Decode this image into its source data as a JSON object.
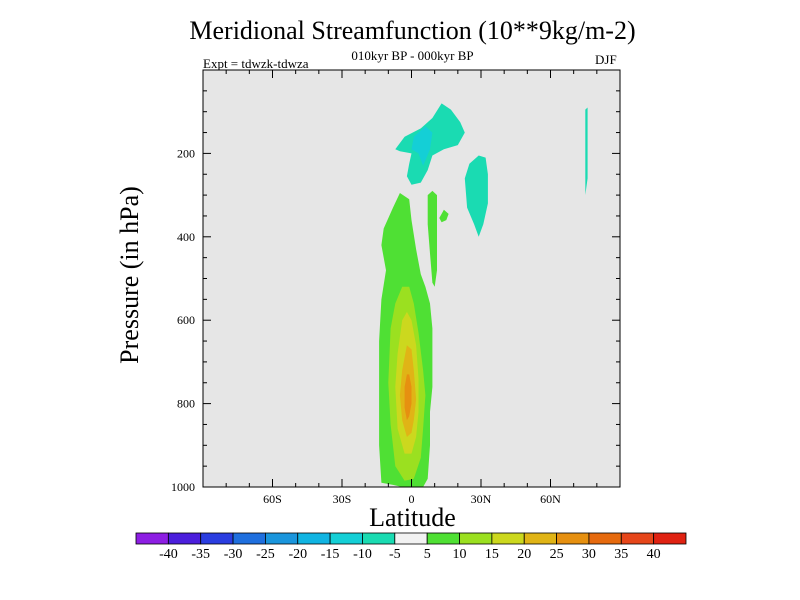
{
  "chart_data": {
    "type": "contour",
    "title": "Meridional Streamfunction (10**9kg/m-2)",
    "subtitle": "010kyr BP - 000kyr BP",
    "left_annotation": "Expt = tdwzk-tdwza",
    "right_annotation": "DJF",
    "xlabel": "Latitude",
    "ylabel": "Pressure (in hPa)",
    "xlim": [
      -90,
      90
    ],
    "ylim": [
      1000,
      0
    ],
    "y_reversed": true,
    "xticks": [
      {
        "v": -60,
        "label": "60S"
      },
      {
        "v": -30,
        "label": "30S"
      },
      {
        "v": 0,
        "label": "0"
      },
      {
        "v": 30,
        "label": "30N"
      },
      {
        "v": 60,
        "label": "60N"
      }
    ],
    "yticks": [
      {
        "v": 200,
        "label": "200"
      },
      {
        "v": 400,
        "label": "400"
      },
      {
        "v": 600,
        "label": "600"
      },
      {
        "v": 800,
        "label": "800"
      },
      {
        "v": 1000,
        "label": "1000"
      }
    ],
    "background_color": "#e6e6e6",
    "contour_levels": [
      -40,
      -35,
      -30,
      -25,
      -20,
      -15,
      -10,
      -5,
      5,
      10,
      15,
      20,
      25,
      30,
      35,
      40
    ],
    "colorbar_colors": [
      "#8d1ee3",
      "#4b1edc",
      "#2a3de0",
      "#1f6fde",
      "#1a95dc",
      "#10b4e2",
      "#14cfd6",
      "#1adbb2",
      "#f2f2f2",
      "#4fe034",
      "#9be020",
      "#ccd81e",
      "#e0b416",
      "#e69010",
      "#e66a0e",
      "#e6461a",
      "#e02212"
    ],
    "features": [
      {
        "level": "-10 to -5",
        "color": "#1adbb2",
        "desc": "upper-tropospheric negative cell near equator",
        "outline": [
          [
            -7,
            190
          ],
          [
            -3,
            160
          ],
          [
            4,
            140
          ],
          [
            9,
            115
          ],
          [
            13,
            80
          ],
          [
            17,
            95
          ],
          [
            21,
            125
          ],
          [
            23,
            150
          ],
          [
            20,
            180
          ],
          [
            14,
            190
          ],
          [
            9,
            205
          ],
          [
            7,
            240
          ],
          [
            4,
            270
          ],
          [
            0,
            275
          ],
          [
            -2,
            255
          ],
          [
            -1,
            225
          ],
          [
            0,
            200
          ],
          [
            -5,
            195
          ]
        ]
      },
      {
        "level": "-15 to -10",
        "color": "#14cfd6",
        "desc": "inner core",
        "outline": [
          [
            1,
            160
          ],
          [
            6,
            135
          ],
          [
            9,
            150
          ],
          [
            8,
            190
          ],
          [
            5,
            230
          ],
          [
            3,
            200
          ],
          [
            0,
            190
          ]
        ]
      },
      {
        "level": "-10 to -5",
        "color": "#1adbb2",
        "desc": "subtropical column",
        "outline": [
          [
            23,
            260
          ],
          [
            25,
            225
          ],
          [
            29,
            205
          ],
          [
            32,
            210
          ],
          [
            33,
            250
          ],
          [
            33,
            320
          ],
          [
            31,
            370
          ],
          [
            29,
            400
          ],
          [
            27,
            370
          ],
          [
            24,
            330
          ]
        ]
      },
      {
        "level": "-10 to -5",
        "color": "#1adbb2",
        "desc": "thin high-latitude strip",
        "outline": [
          [
            75,
            95
          ],
          [
            76,
            90
          ],
          [
            76,
            100
          ],
          [
            76,
            260
          ],
          [
            75,
            300
          ],
          [
            75,
            260
          ]
        ]
      },
      {
        "level": "5 to 10",
        "color": "#4fe034",
        "desc": "deep tropical positive cell",
        "outline": [
          [
            -11,
            480
          ],
          [
            -13,
            420
          ],
          [
            -12,
            380
          ],
          [
            -8,
            330
          ],
          [
            -5,
            295
          ],
          [
            -1,
            310
          ],
          [
            0,
            360
          ],
          [
            2,
            430
          ],
          [
            4,
            490
          ],
          [
            6,
            520
          ],
          [
            8,
            560
          ],
          [
            9,
            620
          ],
          [
            9,
            760
          ],
          [
            8,
            820
          ],
          [
            8,
            900
          ],
          [
            7,
            980
          ],
          [
            5,
            1000
          ],
          [
            -4,
            1000
          ],
          [
            -8,
            995
          ],
          [
            -13,
            990
          ],
          [
            -14,
            900
          ],
          [
            -14,
            770
          ],
          [
            -14,
            650
          ],
          [
            -13,
            550
          ]
        ]
      },
      {
        "level": "10 to 15",
        "color": "#9be020",
        "desc": "",
        "outline": [
          [
            -9,
            620
          ],
          [
            -7,
            560
          ],
          [
            -4,
            520
          ],
          [
            -1,
            520
          ],
          [
            1,
            560
          ],
          [
            3,
            630
          ],
          [
            5,
            720
          ],
          [
            6,
            780
          ],
          [
            5,
            860
          ],
          [
            4,
            930
          ],
          [
            1,
            980
          ],
          [
            -3,
            985
          ],
          [
            -7,
            950
          ],
          [
            -9,
            850
          ],
          [
            -10,
            750
          ]
        ]
      },
      {
        "level": "15 to 20",
        "color": "#ccd81e",
        "desc": "",
        "outline": [
          [
            -6,
            680
          ],
          [
            -4,
            600
          ],
          [
            -2,
            580
          ],
          [
            0,
            600
          ],
          [
            2,
            660
          ],
          [
            3,
            740
          ],
          [
            3,
            820
          ],
          [
            2,
            880
          ],
          [
            0,
            920
          ],
          [
            -3,
            920
          ],
          [
            -6,
            860
          ],
          [
            -7,
            760
          ]
        ]
      },
      {
        "level": "20 to 25",
        "color": "#e0b416",
        "desc": "",
        "outline": [
          [
            -4,
            720
          ],
          [
            -2,
            660
          ],
          [
            0,
            670
          ],
          [
            1,
            720
          ],
          [
            2,
            790
          ],
          [
            1,
            840
          ],
          [
            0,
            870
          ],
          [
            -2,
            880
          ],
          [
            -4,
            840
          ],
          [
            -5,
            780
          ]
        ]
      },
      {
        "level": "25 to 30",
        "color": "#e69010",
        "desc": "",
        "outline": [
          [
            -3,
            760
          ],
          [
            -2,
            730
          ],
          [
            -1,
            730
          ],
          [
            0,
            760
          ],
          [
            0,
            800
          ],
          [
            -1,
            830
          ],
          [
            -2,
            840
          ],
          [
            -3,
            810
          ]
        ]
      },
      {
        "level": "5 to 10",
        "color": "#4fe034",
        "desc": "narrow column east of core",
        "outline": [
          [
            7,
            300
          ],
          [
            9,
            290
          ],
          [
            11,
            300
          ],
          [
            11,
            400
          ],
          [
            11,
            480
          ],
          [
            10,
            520
          ],
          [
            9,
            510
          ],
          [
            8,
            440
          ],
          [
            7,
            370
          ]
        ]
      },
      {
        "level": "5 to 10",
        "color": "#4fe034",
        "desc": "small tongue",
        "outline": [
          [
            12,
            355
          ],
          [
            14,
            335
          ],
          [
            16,
            345
          ],
          [
            15,
            360
          ],
          [
            13,
            365
          ]
        ]
      }
    ]
  },
  "colorbar": {
    "labels": [
      "-40",
      "-35",
      "-30",
      "-25",
      "-20",
      "-15",
      "-10",
      "-5",
      "5",
      "10",
      "15",
      "20",
      "25",
      "30",
      "35",
      "40"
    ]
  }
}
